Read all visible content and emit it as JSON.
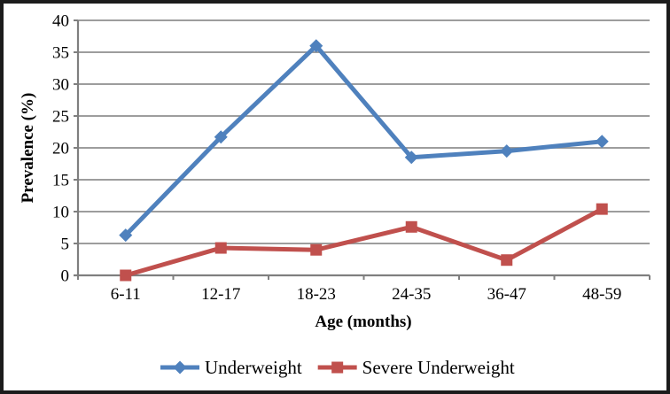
{
  "chart_data": {
    "type": "line",
    "title": "",
    "xlabel": "Age (months)",
    "ylabel": "Prevalence (%)",
    "categories": [
      "6-11",
      "12-17",
      "18-23",
      "24-35",
      "36-47",
      "48-59"
    ],
    "series": [
      {
        "name": "Underweight",
        "marker": "diamond",
        "color": "#4F81BD",
        "values": [
          6.3,
          21.7,
          36.0,
          18.5,
          19.5,
          21.0
        ]
      },
      {
        "name": "Severe Underweight",
        "marker": "square",
        "color": "#C0504D",
        "values": [
          0.0,
          4.3,
          4.0,
          7.6,
          2.4,
          10.4
        ]
      }
    ],
    "ylim": [
      0,
      40
    ],
    "ytick_step": 5,
    "ytick_labels": [
      "0",
      "5",
      "10",
      "15",
      "20",
      "25",
      "30",
      "35",
      "40"
    ],
    "grid": "horizontal",
    "legend_position": "bottom",
    "colors": {
      "grid": "#8f8f8f",
      "axis": "#7f7f7f",
      "text": "#000000",
      "frame_border": "#1c1c1c",
      "background": "#ffffff"
    }
  }
}
